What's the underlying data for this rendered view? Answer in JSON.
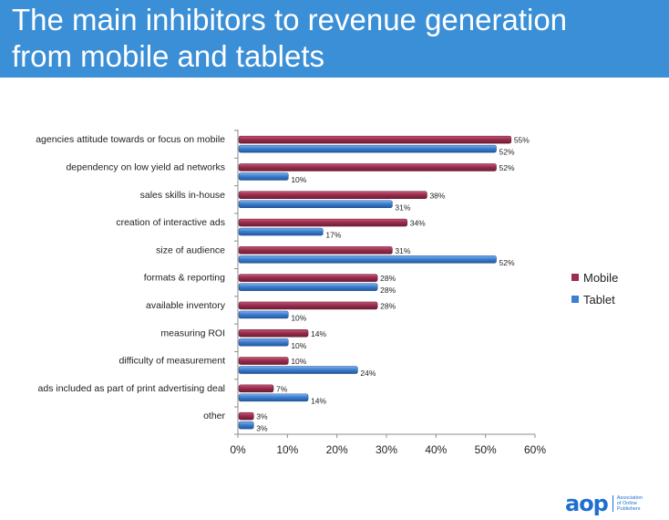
{
  "slide": {
    "title": "The main inhibitors to revenue generation\nfrom mobile and tablets"
  },
  "logo": {
    "mark": "aop",
    "text": "Association of Online Publishers"
  },
  "chart_data": {
    "type": "bar",
    "orientation": "horizontal",
    "categories": [
      "agencies attitude towards or focus on mobile",
      "dependency on low yield ad networks",
      "sales skills in-house",
      "creation of interactive ads",
      "size of audience",
      "formats & reporting",
      "available inventory",
      "measuring ROI",
      "difficulty of measurement",
      "ads included as part of print advertising deal",
      "other"
    ],
    "series": [
      {
        "name": "Mobile",
        "color": "#9b2d4e",
        "values": [
          55,
          52,
          38,
          34,
          31,
          28,
          28,
          14,
          10,
          7,
          3
        ]
      },
      {
        "name": "Tablet",
        "color": "#3d7fd0",
        "values": [
          52,
          10,
          31,
          17,
          52,
          28,
          10,
          10,
          24,
          14,
          3
        ]
      }
    ],
    "value_suffix": "%",
    "xlim": [
      0,
      60
    ],
    "xticks": [
      0,
      10,
      20,
      30,
      40,
      50,
      60
    ],
    "xtick_labels": [
      "0%",
      "10%",
      "20%",
      "30%",
      "40%",
      "50%",
      "60%"
    ],
    "legend_position": "right",
    "grid": false
  }
}
